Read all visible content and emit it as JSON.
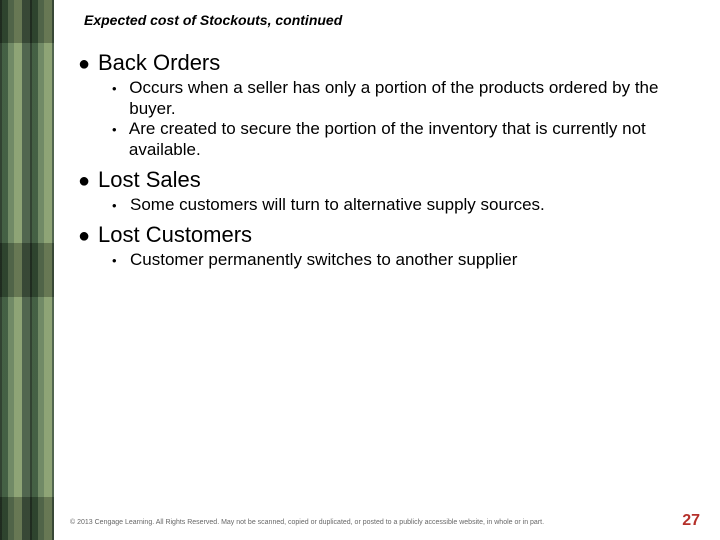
{
  "title": "Expected cost of Stockouts, continued",
  "sections": [
    {
      "heading": "Back Orders",
      "items": [
        "Occurs when a seller has only a portion of the products ordered by the buyer.",
        "Are created to secure the portion of the inventory that is currently not available."
      ]
    },
    {
      "heading": "Lost Sales",
      "items": [
        "Some customers will turn to alternative supply sources."
      ]
    },
    {
      "heading": "Lost Customers",
      "items": [
        "Customer permanently switches to another supplier"
      ]
    }
  ],
  "footer": "© 2013 Cengage Learning. All Rights Reserved. May not be scanned, copied or duplicated, or posted to a publicly accessible website, in whole or in part.",
  "page_number": "27",
  "colors": {
    "page_number": "#b5302a",
    "footer_text": "#676767",
    "text": "#000000"
  }
}
